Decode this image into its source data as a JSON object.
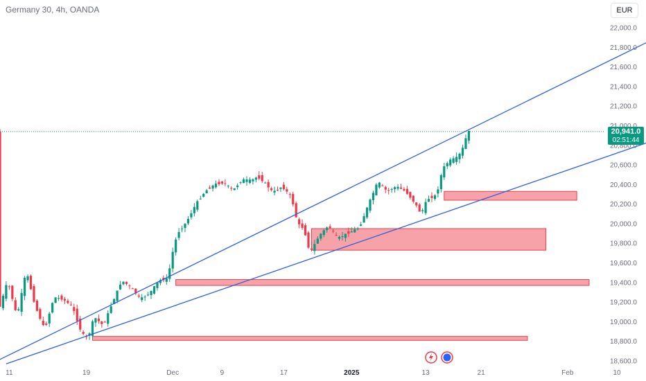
{
  "header": {
    "title": "Germany 30, 4h, OANDA"
  },
  "currency_button": {
    "label": "EUR"
  },
  "price_label": {
    "price": "20,941.0",
    "countdown": "02:51:44"
  },
  "icons": [
    "flash-icon",
    "globe-icon"
  ],
  "colors": {
    "up": "#089981",
    "down": "#f23645",
    "trendline": "#2e5fe0",
    "zone_fill": "#f7a1a8",
    "zone_border": "#e5404f"
  },
  "chart_data": {
    "type": "candlestick",
    "title": "Germany 30, 4h, OANDA",
    "ylim": [
      18550,
      22100
    ],
    "y_ticks": [
      "18,600.0",
      "18,800.0",
      "19,000.0",
      "19,200.0",
      "19,400.0",
      "19,600.0",
      "19,800.0",
      "20,000.0",
      "20,200.0",
      "20,400.0",
      "20,600.0",
      "20,800.0",
      "21,000.0",
      "21,200.0",
      "21,400.0",
      "21,600.0",
      "21,800.0",
      "22,000.0"
    ],
    "y_tick_values": [
      18600,
      18800,
      19000,
      19200,
      19400,
      19600,
      19800,
      20000,
      20200,
      20400,
      20600,
      20800,
      21000,
      21200,
      21400,
      21600,
      21800,
      22000
    ],
    "x_ticks": [
      {
        "label": "11",
        "bar": 3
      },
      {
        "label": "19",
        "bar": 28
      },
      {
        "label": "Dec",
        "bar": 56
      },
      {
        "label": "9",
        "bar": 72
      },
      {
        "label": "17",
        "bar": 92
      },
      {
        "label": "2025",
        "bar": 114,
        "bold": true
      },
      {
        "label": "13",
        "bar": 138
      },
      {
        "label": "21",
        "bar": 156
      },
      {
        "label": "Feb",
        "bar": 184
      },
      {
        "label": "10",
        "bar": 200
      }
    ],
    "last_price": 20941,
    "series_path": [
      [
        0,
        19100
      ],
      [
        3,
        19420
      ],
      [
        6,
        19050
      ],
      [
        9,
        19520
      ],
      [
        12,
        19150
      ],
      [
        15,
        18920
      ],
      [
        18,
        19250
      ],
      [
        21,
        19230
      ],
      [
        24,
        19150
      ],
      [
        27,
        18880
      ],
      [
        29,
        18830
      ],
      [
        31,
        19050
      ],
      [
        34,
        18960
      ],
      [
        37,
        19200
      ],
      [
        40,
        19420
      ],
      [
        43,
        19350
      ],
      [
        46,
        19230
      ],
      [
        49,
        19290
      ],
      [
        52,
        19420
      ],
      [
        55,
        19440
      ],
      [
        56,
        19650
      ],
      [
        58,
        19900
      ],
      [
        61,
        20020
      ],
      [
        64,
        20200
      ],
      [
        67,
        20330
      ],
      [
        70,
        20400
      ],
      [
        73,
        20420
      ],
      [
        76,
        20340
      ],
      [
        79,
        20450
      ],
      [
        82,
        20440
      ],
      [
        84,
        20480
      ],
      [
        86,
        20430
      ],
      [
        89,
        20320
      ],
      [
        92,
        20380
      ],
      [
        95,
        20270
      ],
      [
        97,
        20000
      ],
      [
        99,
        19950
      ],
      [
        101,
        19700
      ],
      [
        104,
        19880
      ],
      [
        107,
        19980
      ],
      [
        110,
        19850
      ],
      [
        113,
        19900
      ],
      [
        117,
        19960
      ],
      [
        120,
        20200
      ],
      [
        123,
        20430
      ],
      [
        126,
        20330
      ],
      [
        129,
        20380
      ],
      [
        132,
        20330
      ],
      [
        135,
        20210
      ],
      [
        137,
        20100
      ],
      [
        139,
        20250
      ],
      [
        142,
        20290
      ],
      [
        144,
        20560
      ],
      [
        146,
        20640
      ],
      [
        149,
        20680
      ],
      [
        151,
        20800
      ],
      [
        152,
        20941
      ]
    ],
    "trendlines": [
      {
        "from": {
          "bar": -1,
          "price": 18600
        },
        "to": {
          "bar": 211,
          "price": 21870
        }
      },
      {
        "from": {
          "bar": 2,
          "price": 18570
        },
        "to": {
          "bar": 211,
          "price": 20840
        }
      }
    ],
    "zones": [
      {
        "bar_from": 144,
        "bar_to": 187,
        "low": 20240,
        "high": 20330
      },
      {
        "bar_from": 101,
        "bar_to": 177,
        "low": 19730,
        "high": 19950
      },
      {
        "bar_from": 57,
        "bar_to": 191,
        "low": 19370,
        "high": 19430
      },
      {
        "bar_from": 30,
        "bar_to": 171,
        "low": 18810,
        "high": 18850
      }
    ],
    "current_price_line": 20941,
    "grid": false
  }
}
